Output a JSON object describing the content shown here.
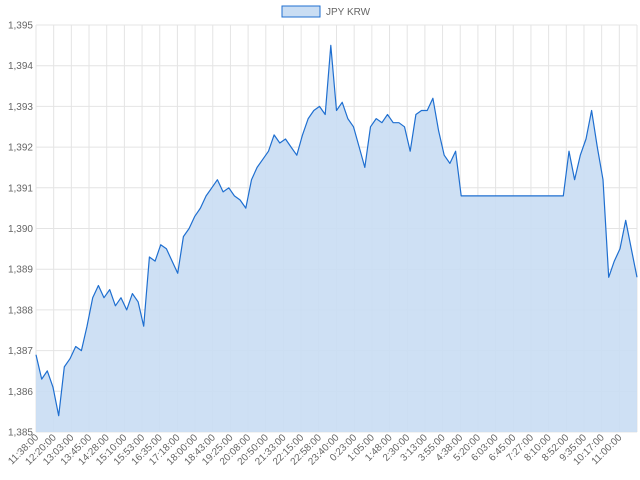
{
  "chart_data": {
    "type": "area",
    "legend": {
      "label": "JPY KRW",
      "position": "top-center"
    },
    "colors": {
      "line": "#1f6fd0",
      "fill": "#c9ddf3",
      "grid": "#e4e4e4",
      "text": "#666666"
    },
    "grid": true,
    "ylim": [
      1385,
      1395
    ],
    "y_ticks": [
      "1,385",
      "1,386",
      "1,387",
      "1,388",
      "1,389",
      "1,390",
      "1,391",
      "1,392",
      "1,393",
      "1,394",
      "1,395"
    ],
    "x_ticks": [
      "11:38:00",
      "12:20:00",
      "13:03:00",
      "13:45:00",
      "14:28:00",
      "15:10:00",
      "15:53:00",
      "16:35:00",
      "17:18:00",
      "18:00:00",
      "18:43:00",
      "19:25:00",
      "20:08:00",
      "20:50:00",
      "21:33:00",
      "22:15:00",
      "22:58:00",
      "23:40:00",
      "0:23:00",
      "1:05:00",
      "1:48:00",
      "2:30:00",
      "3:13:00",
      "3:55:00",
      "4:38:00",
      "5:20:00",
      "6:03:00",
      "6:45:00",
      "7:27:00",
      "8:10:00",
      "8:52:00",
      "9:35:00",
      "10:17:00",
      "11:00:00"
    ],
    "series": [
      {
        "name": "JPY KRW",
        "values": [
          1386.9,
          1386.3,
          1386.5,
          1386.1,
          1385.4,
          1386.6,
          1386.8,
          1387.1,
          1387.0,
          1387.6,
          1388.3,
          1388.6,
          1388.3,
          1388.5,
          1388.1,
          1388.3,
          1388.0,
          1388.4,
          1388.2,
          1387.6,
          1389.3,
          1389.2,
          1389.6,
          1389.5,
          1389.2,
          1388.9,
          1389.8,
          1390.0,
          1390.3,
          1390.5,
          1390.8,
          1391.0,
          1391.2,
          1390.9,
          1391.0,
          1390.8,
          1390.7,
          1390.5,
          1391.2,
          1391.5,
          1391.7,
          1391.9,
          1392.3,
          1392.1,
          1392.2,
          1392.0,
          1391.8,
          1392.3,
          1392.7,
          1392.9,
          1393.0,
          1392.8,
          1394.5,
          1392.9,
          1393.1,
          1392.7,
          1392.5,
          1392.0,
          1391.5,
          1392.5,
          1392.7,
          1392.6,
          1392.8,
          1392.6,
          1392.6,
          1392.5,
          1391.9,
          1392.8,
          1392.9,
          1392.9,
          1393.2,
          1392.4,
          1391.8,
          1391.6,
          1391.9,
          1390.8,
          1390.8,
          1390.8,
          1390.8,
          1390.8,
          1390.8,
          1390.8,
          1390.8,
          1390.8,
          1390.8,
          1390.8,
          1390.8,
          1390.8,
          1390.8,
          1390.8,
          1390.8,
          1390.8,
          1390.8,
          1390.8,
          1391.9,
          1391.2,
          1391.8,
          1392.2,
          1392.9,
          1392.0,
          1391.2,
          1388.8,
          1389.2,
          1389.5,
          1390.2,
          1389.5,
          1388.8
        ]
      }
    ]
  }
}
